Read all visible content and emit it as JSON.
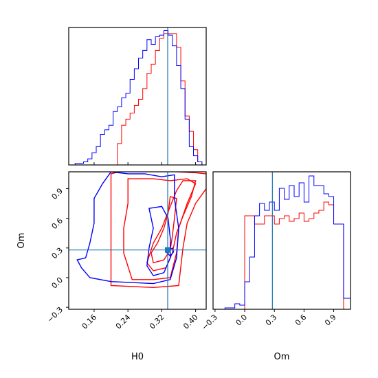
{
  "chart_data": {
    "type": "corner",
    "parameters": [
      "H0",
      "Om"
    ],
    "truths": {
      "H0": 0.334,
      "Om": 0.28
    },
    "colors": {
      "series_a": "#ff0000",
      "series_b": "#0000ff",
      "truth": "#1f77b4"
    },
    "xlabels": {
      "H0": "H0",
      "Om": "Om"
    },
    "ylabels": {
      "Om": "Om"
    },
    "axes": {
      "H0": {
        "range": [
          0.1,
          0.425
        ],
        "ticks": [
          0.16,
          0.24,
          0.32,
          0.4
        ],
        "tick_labels": [
          "0.16",
          "0.24",
          "0.32",
          "0.40"
        ]
      },
      "Om": {
        "range": [
          -0.32,
          1.07
        ],
        "ticks": [
          -0.3,
          0.0,
          0.3,
          0.6,
          0.9
        ],
        "tick_labels": [
          "−0.3",
          "0.0",
          "0.3",
          "0.6",
          "0.9"
        ]
      }
    },
    "hist_H0": {
      "edges": [
        0.115,
        0.125,
        0.135,
        0.145,
        0.155,
        0.165,
        0.175,
        0.185,
        0.195,
        0.205,
        0.215,
        0.225,
        0.235,
        0.245,
        0.255,
        0.265,
        0.275,
        0.285,
        0.295,
        0.305,
        0.315,
        0.325,
        0.335,
        0.345,
        0.355,
        0.365,
        0.375,
        0.385,
        0.395,
        0.405,
        0.415
      ],
      "series_a": [
        0,
        0,
        0,
        0,
        0,
        0,
        0,
        0,
        0,
        0,
        0.14,
        0.26,
        0.3,
        0.34,
        0.39,
        0.43,
        0.5,
        0.6,
        0.66,
        0.75,
        0.83,
        0.86,
        0.86,
        0.86,
        0.77,
        0.55,
        0.32,
        0.22,
        0.1,
        0.02
      ],
      "series_b": [
        0.01,
        0.01,
        0.02,
        0.04,
        0.08,
        0.12,
        0.2,
        0.23,
        0.26,
        0.35,
        0.38,
        0.44,
        0.47,
        0.56,
        0.63,
        0.7,
        0.75,
        0.82,
        0.79,
        0.84,
        0.85,
        0.88,
        0.85,
        0.78,
        0.65,
        0.5,
        0.3,
        0.12,
        0.06,
        0.02
      ]
    },
    "hist_Om": {
      "edges": [
        -0.2,
        -0.15,
        -0.1,
        -0.05,
        0.0,
        0.05,
        0.1,
        0.15,
        0.2,
        0.25,
        0.3,
        0.35,
        0.4,
        0.45,
        0.5,
        0.55,
        0.6,
        0.65,
        0.7,
        0.75,
        0.8,
        0.85,
        0.9,
        0.95,
        1.0,
        1.05,
        1.1
      ],
      "series_a": [
        0,
        0,
        0,
        0,
        0.68,
        0.68,
        0.62,
        0.62,
        0.68,
        0.68,
        0.62,
        0.66,
        0.68,
        0.64,
        0.66,
        0.7,
        0.64,
        0.66,
        0.7,
        0.72,
        0.78,
        0.76,
        0.62,
        0.62,
        0,
        0
      ],
      "series_b": [
        0.01,
        0.01,
        0.04,
        0.03,
        0.2,
        0.38,
        0.68,
        0.77,
        0.72,
        0.78,
        0.72,
        0.88,
        0.8,
        0.9,
        0.82,
        0.92,
        0.78,
        0.97,
        0.9,
        0.9,
        0.84,
        0.82,
        0.62,
        0.62,
        0.08,
        0.08
      ]
    },
    "contours_H0_Om": {
      "series_a": [
        [
          [
            0.2,
            1.05
          ],
          [
            0.22,
            1.07
          ],
          [
            0.3,
            1.08
          ],
          [
            0.36,
            1.07
          ],
          [
            0.4,
            1.06
          ],
          [
            0.425,
            1.05
          ],
          [
            0.425,
            0.9
          ],
          [
            0.4,
            0.75
          ],
          [
            0.38,
            0.55
          ],
          [
            0.37,
            0.3
          ],
          [
            0.36,
            -0.08
          ],
          [
            0.3,
            -0.1
          ],
          [
            0.2,
            -0.08
          ],
          [
            0.2,
            0.4
          ],
          [
            0.2,
            0.8
          ],
          [
            0.2,
            1.05
          ]
        ],
        [
          [
            0.24,
            1.0
          ],
          [
            0.3,
            1.0
          ],
          [
            0.34,
            0.98
          ],
          [
            0.38,
            1.0
          ],
          [
            0.4,
            0.95
          ],
          [
            0.38,
            0.75
          ],
          [
            0.36,
            0.5
          ],
          [
            0.355,
            0.25
          ],
          [
            0.34,
            0.0
          ],
          [
            0.3,
            -0.02
          ],
          [
            0.25,
            -0.02
          ],
          [
            0.23,
            0.25
          ],
          [
            0.23,
            0.5
          ],
          [
            0.24,
            0.75
          ],
          [
            0.24,
            1.0
          ]
        ],
        [
          [
            0.37,
            0.98
          ],
          [
            0.4,
            0.98
          ],
          [
            0.39,
            0.82
          ],
          [
            0.37,
            0.62
          ],
          [
            0.355,
            0.45
          ],
          [
            0.345,
            0.25
          ],
          [
            0.33,
            0.1
          ],
          [
            0.3,
            0.07
          ],
          [
            0.285,
            0.15
          ],
          [
            0.3,
            0.35
          ],
          [
            0.32,
            0.5
          ],
          [
            0.34,
            0.72
          ],
          [
            0.355,
            0.88
          ],
          [
            0.37,
            0.98
          ]
        ],
        [
          [
            0.34,
            0.82
          ],
          [
            0.355,
            0.8
          ],
          [
            0.35,
            0.6
          ],
          [
            0.345,
            0.42
          ],
          [
            0.34,
            0.28
          ],
          [
            0.325,
            0.18
          ],
          [
            0.3,
            0.15
          ],
          [
            0.295,
            0.25
          ],
          [
            0.31,
            0.35
          ],
          [
            0.325,
            0.5
          ],
          [
            0.335,
            0.65
          ],
          [
            0.34,
            0.82
          ]
        ]
      ],
      "series_b": [
        [
          [
            0.2,
            1.07
          ],
          [
            0.24,
            1.05
          ],
          [
            0.28,
            1.05
          ],
          [
            0.32,
            1.02
          ],
          [
            0.35,
            1.04
          ],
          [
            0.35,
            0.8
          ],
          [
            0.36,
            0.5
          ],
          [
            0.355,
            0.2
          ],
          [
            0.34,
            -0.02
          ],
          [
            0.3,
            -0.06
          ],
          [
            0.2,
            -0.04
          ],
          [
            0.15,
            0.0
          ],
          [
            0.13,
            0.1
          ],
          [
            0.12,
            0.18
          ],
          [
            0.14,
            0.2
          ],
          [
            0.15,
            0.35
          ],
          [
            0.16,
            0.55
          ],
          [
            0.16,
            0.8
          ],
          [
            0.18,
            0.95
          ],
          [
            0.2,
            1.07
          ]
        ],
        [
          [
            0.29,
            0.7
          ],
          [
            0.32,
            0.72
          ],
          [
            0.335,
            0.6
          ],
          [
            0.34,
            0.4
          ],
          [
            0.34,
            0.2
          ],
          [
            0.325,
            0.05
          ],
          [
            0.3,
            0.02
          ],
          [
            0.285,
            0.12
          ],
          [
            0.29,
            0.3
          ],
          [
            0.3,
            0.5
          ],
          [
            0.29,
            0.7
          ]
        ],
        [
          [
            0.33,
            0.26
          ],
          [
            0.338,
            0.28
          ],
          [
            0.345,
            0.3
          ],
          [
            0.348,
            0.26
          ],
          [
            0.34,
            0.22
          ],
          [
            0.33,
            0.26
          ]
        ]
      ]
    }
  }
}
